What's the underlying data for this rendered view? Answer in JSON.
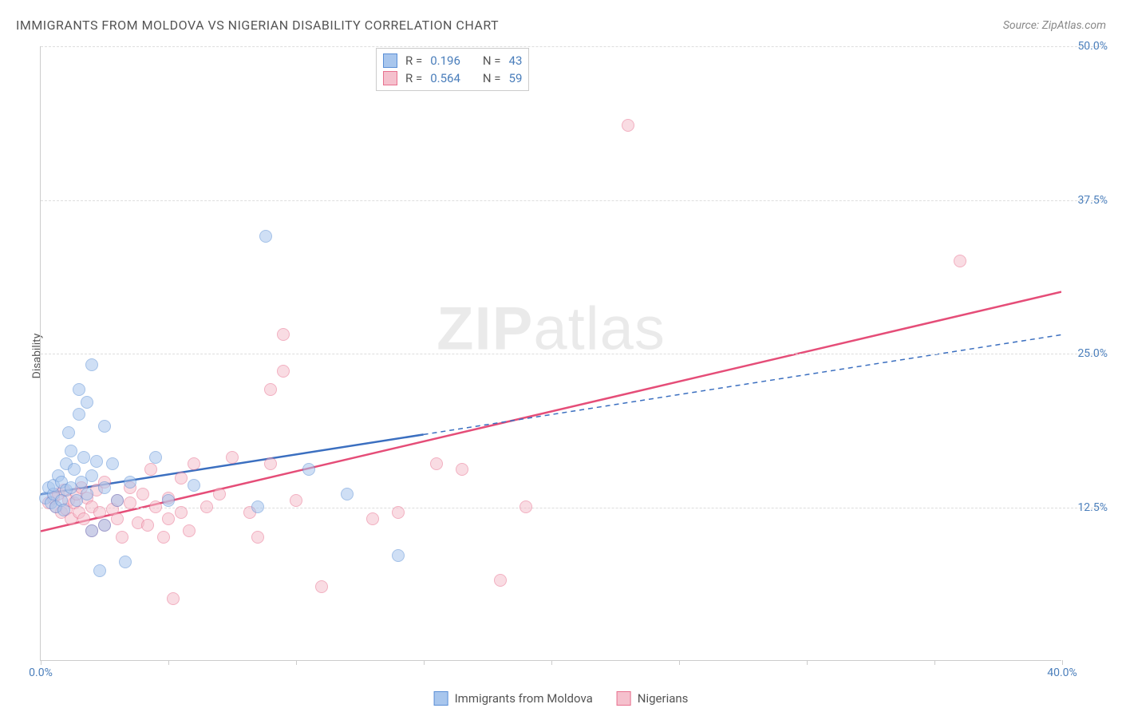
{
  "title": "IMMIGRANTS FROM MOLDOVA VS NIGERIAN DISABILITY CORRELATION CHART",
  "source_label": "Source: ZipAtlas.com",
  "watermark": {
    "bold": "ZIP",
    "rest": "atlas"
  },
  "y_axis_title": "Disability",
  "chart": {
    "type": "scatter",
    "xlim": [
      0,
      40
    ],
    "ylim": [
      0,
      50
    ],
    "x_ticks": [
      0,
      5,
      10,
      15,
      20,
      25,
      30,
      35,
      40
    ],
    "x_tick_labels": {
      "0": "0.0%",
      "40": "40.0%"
    },
    "y_ticks": [
      12.5,
      25.0,
      37.5,
      50.0
    ],
    "y_tick_labels": [
      "12.5%",
      "25.0%",
      "37.5%",
      "50.0%"
    ],
    "grid_color": "#dddddd",
    "axis_color": "#cccccc",
    "background_color": "#ffffff",
    "point_radius": 8,
    "point_opacity": 0.55
  },
  "series": {
    "moldova": {
      "label": "Immigrants from Moldova",
      "fill": "#a8c6ed",
      "stroke": "#5b8fd6",
      "line_color": "#3b6fc0",
      "R": "0.196",
      "N": "43",
      "trend": {
        "x1": 0,
        "y1": 13.5,
        "x2": 40,
        "y2": 26.5,
        "solid_until_x": 15
      },
      "points": [
        [
          0.2,
          13.2
        ],
        [
          0.3,
          14.0
        ],
        [
          0.4,
          12.8
        ],
        [
          0.5,
          13.5
        ],
        [
          0.5,
          14.2
        ],
        [
          0.6,
          12.5
        ],
        [
          0.7,
          15.0
        ],
        [
          0.8,
          13.0
        ],
        [
          0.8,
          14.5
        ],
        [
          0.9,
          12.2
        ],
        [
          1.0,
          16.0
        ],
        [
          1.0,
          13.8
        ],
        [
          1.1,
          18.5
        ],
        [
          1.2,
          14.0
        ],
        [
          1.2,
          17.0
        ],
        [
          1.3,
          15.5
        ],
        [
          1.4,
          13.0
        ],
        [
          1.5,
          20.0
        ],
        [
          1.5,
          22.0
        ],
        [
          1.6,
          14.5
        ],
        [
          1.7,
          16.5
        ],
        [
          1.8,
          21.0
        ],
        [
          1.8,
          13.5
        ],
        [
          2.0,
          15.0
        ],
        [
          2.0,
          24.0
        ],
        [
          2.0,
          10.5
        ],
        [
          2.2,
          16.2
        ],
        [
          2.3,
          7.3
        ],
        [
          2.5,
          19.0
        ],
        [
          2.5,
          11.0
        ],
        [
          2.5,
          14.0
        ],
        [
          2.8,
          16.0
        ],
        [
          3.0,
          13.0
        ],
        [
          3.3,
          8.0
        ],
        [
          3.5,
          14.5
        ],
        [
          4.5,
          16.5
        ],
        [
          5.0,
          13.0
        ],
        [
          6.0,
          14.2
        ],
        [
          8.5,
          12.5
        ],
        [
          8.8,
          34.5
        ],
        [
          10.5,
          15.5
        ],
        [
          12.0,
          13.5
        ],
        [
          14.0,
          8.5
        ]
      ]
    },
    "nigerians": {
      "label": "Nigerians",
      "fill": "#f5c0cd",
      "stroke": "#e8718f",
      "line_color": "#e54d78",
      "R": "0.564",
      "N": "59",
      "trend": {
        "x1": 0,
        "y1": 10.5,
        "x2": 40,
        "y2": 30.0,
        "solid_until_x": 40
      },
      "points": [
        [
          0.3,
          12.8
        ],
        [
          0.5,
          13.2
        ],
        [
          0.6,
          12.5
        ],
        [
          0.7,
          13.5
        ],
        [
          0.8,
          12.0
        ],
        [
          0.9,
          13.8
        ],
        [
          1.0,
          12.3
        ],
        [
          1.1,
          13.0
        ],
        [
          1.2,
          11.5
        ],
        [
          1.3,
          12.8
        ],
        [
          1.4,
          13.5
        ],
        [
          1.5,
          12.0
        ],
        [
          1.6,
          14.0
        ],
        [
          1.7,
          11.5
        ],
        [
          1.8,
          13.2
        ],
        [
          2.0,
          12.5
        ],
        [
          2.0,
          10.5
        ],
        [
          2.2,
          13.8
        ],
        [
          2.3,
          12.0
        ],
        [
          2.5,
          11.0
        ],
        [
          2.5,
          14.5
        ],
        [
          2.8,
          12.3
        ],
        [
          3.0,
          13.0
        ],
        [
          3.0,
          11.5
        ],
        [
          3.2,
          10.0
        ],
        [
          3.5,
          12.8
        ],
        [
          3.5,
          14.0
        ],
        [
          3.8,
          11.2
        ],
        [
          4.0,
          13.5
        ],
        [
          4.2,
          11.0
        ],
        [
          4.3,
          15.5
        ],
        [
          4.5,
          12.5
        ],
        [
          4.8,
          10.0
        ],
        [
          5.0,
          13.2
        ],
        [
          5.0,
          11.5
        ],
        [
          5.2,
          5.0
        ],
        [
          5.5,
          12.0
        ],
        [
          5.5,
          14.8
        ],
        [
          5.8,
          10.5
        ],
        [
          6.0,
          16.0
        ],
        [
          6.5,
          12.5
        ],
        [
          7.0,
          13.5
        ],
        [
          7.5,
          16.5
        ],
        [
          8.2,
          12.0
        ],
        [
          8.5,
          10.0
        ],
        [
          9.0,
          22.0
        ],
        [
          9.0,
          16.0
        ],
        [
          9.5,
          23.5
        ],
        [
          9.5,
          26.5
        ],
        [
          10.0,
          13.0
        ],
        [
          11.0,
          6.0
        ],
        [
          13.0,
          11.5
        ],
        [
          14.0,
          12.0
        ],
        [
          15.5,
          16.0
        ],
        [
          16.5,
          15.5
        ],
        [
          18.0,
          6.5
        ],
        [
          19.0,
          12.5
        ],
        [
          23.0,
          43.5
        ],
        [
          36.0,
          32.5
        ]
      ]
    }
  },
  "legend_top": {
    "r_label": "R =",
    "n_label": "N ="
  },
  "legend_bottom_order": [
    "moldova",
    "nigerians"
  ]
}
